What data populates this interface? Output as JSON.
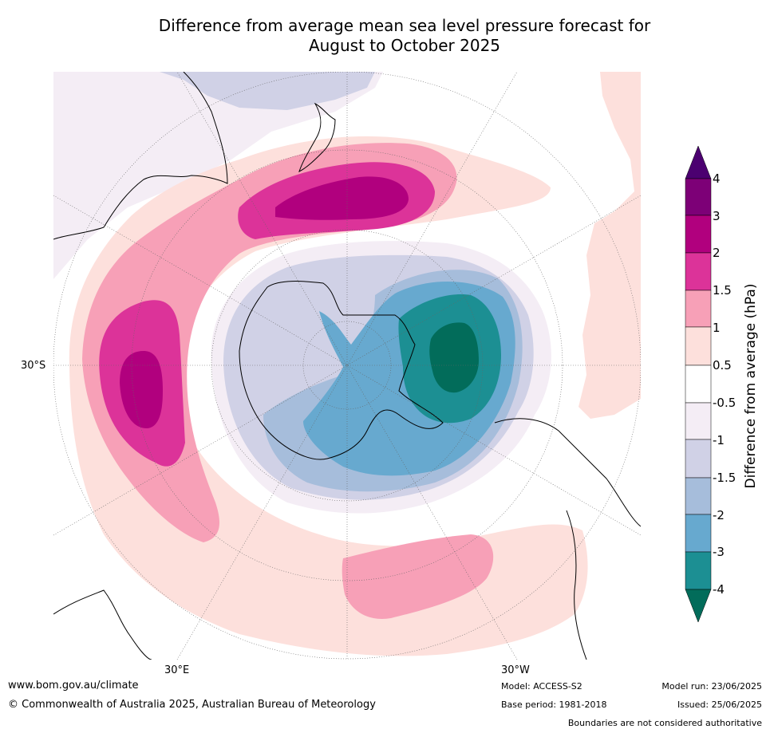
{
  "title_line1": "Difference from average mean sea level pressure forecast for",
  "title_line2": "August to October 2025",
  "map_labels": {
    "lat_30s": "30°S",
    "lon_30e": "30°E",
    "lon_30w": "30°W"
  },
  "colorbar": {
    "title": "Difference from average (hPa)",
    "tick_labels": [
      "4",
      "3",
      "2",
      "1.5",
      "1",
      "0.5",
      "-0.5",
      "-1",
      "-1.5",
      "-2",
      "-3",
      "-4"
    ],
    "colors": {
      "gt4": "#4b0070",
      "3_4": "#7d0077",
      "2_3": "#b1007e",
      "1.5_2": "#dc3399",
      "1_1.5": "#f7a0b7",
      "0.5_1": "#fde0dc",
      "neutral": "#ffffff",
      "-1_-0.5": "#f4edf5",
      "-1.5_-1": "#d0d1e6",
      "-2_-1.5": "#a6bddb",
      "-3_-2": "#67a9cf",
      "-4_-3": "#1c8f93",
      "lt-4": "#026c5a"
    }
  },
  "footer": {
    "website": "www.bom.gov.au/climate",
    "copyright": "© Commonwealth of Australia 2025, Australian Bureau of Meteorology",
    "model": "Model: ACCESS-S2",
    "base_period": "Base period: 1981-2018",
    "model_run": "Model run: 23/06/2025",
    "issued": "Issued: 25/06/2025",
    "disclaimer": "Boundaries are not considered authoritative"
  }
}
